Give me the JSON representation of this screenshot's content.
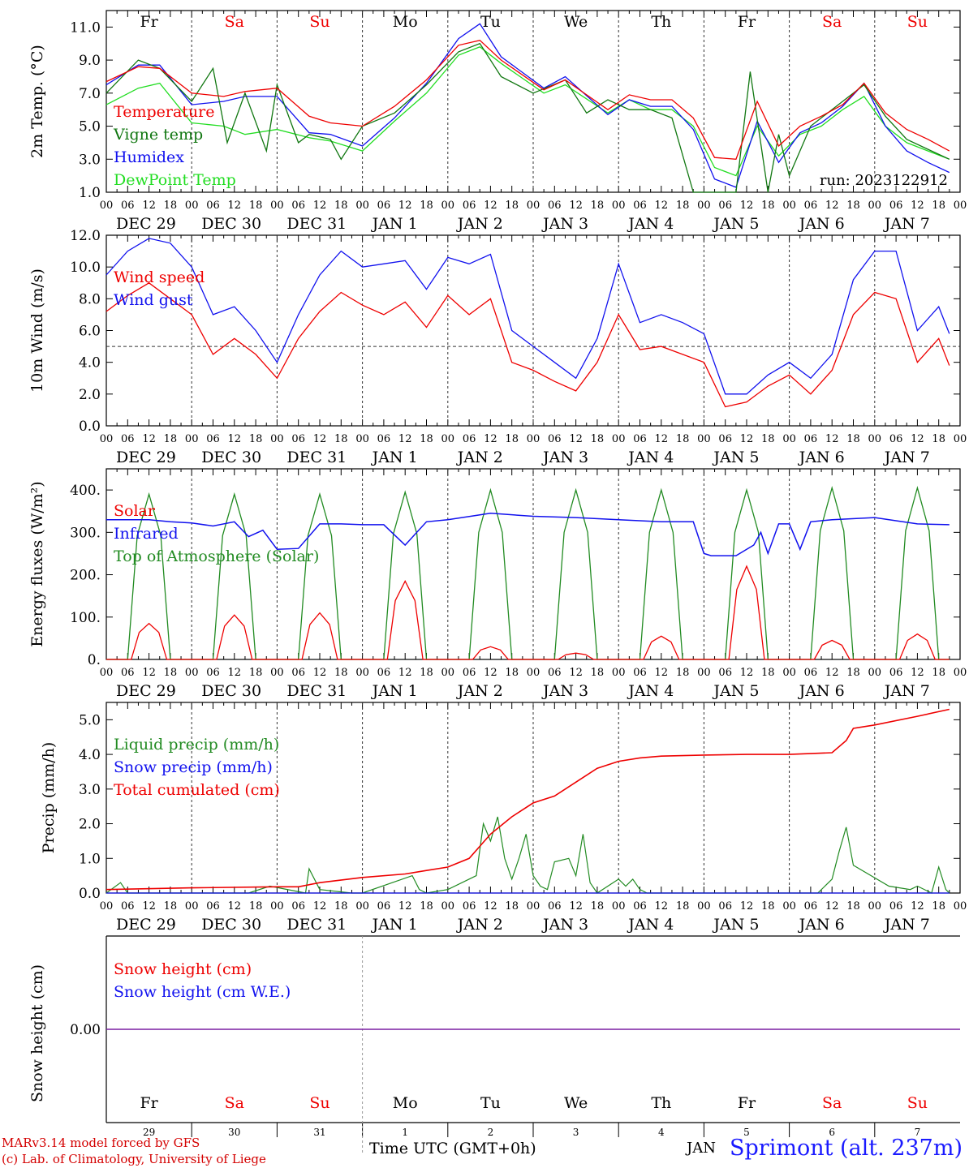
{
  "colors": {
    "red": "#ee0000",
    "darkgreen": "#117711",
    "green": "#228b22",
    "lightgreen": "#22dd22",
    "blue": "#1111ee",
    "purple": "#7a1fa2",
    "weekend": "#ee0000",
    "weekday": "#000000"
  },
  "day_names": [
    "Fr",
    "Sa",
    "Su",
    "Mo",
    "Tu",
    "We",
    "Th",
    "Fr",
    "Sa",
    "Su"
  ],
  "weekend_flags": [
    false,
    true,
    true,
    false,
    false,
    false,
    false,
    false,
    true,
    true
  ],
  "hour_labels": [
    "00",
    "06",
    "12",
    "18"
  ],
  "date_labels": [
    "DEC 29",
    "DEC 30",
    "DEC 31",
    "JAN  1",
    "JAN  2",
    "JAN  3",
    "JAN  4",
    "JAN  5",
    "JAN  6",
    "JAN  7"
  ],
  "bottom_day_numbers": [
    "29",
    "30",
    "31",
    "1",
    "2",
    "3",
    "4",
    "5",
    "6",
    "7"
  ],
  "footer": {
    "model_line": "MARv3.14 model forced by GFS",
    "credit_line": "(c) Lab. of Climatology, University of Liege",
    "time_axis": "Time UTC (GMT+0h)",
    "month": "JAN",
    "station": "Sprimont (alt. 237m)"
  },
  "chart_data": [
    {
      "type": "line",
      "ylabel": "2m Temp. (°C)",
      "ylim": [
        1.0,
        12.0
      ],
      "yticks": [
        "1.0",
        "3.0",
        "5.0",
        "7.0",
        "9.0",
        "11.0"
      ],
      "x_unit": "hours since DEC 29 00 UTC",
      "annotation": "run: 2023122912",
      "series": [
        {
          "name": "Temperature",
          "color": "red",
          "x": [
            0,
            9,
            15,
            24,
            33,
            39,
            48,
            57,
            63,
            72,
            81,
            90,
            99,
            105,
            111,
            123,
            129,
            141,
            147,
            153,
            159,
            165,
            171,
            177,
            183,
            189,
            195,
            201,
            207,
            213,
            219,
            225,
            231,
            237
          ],
          "values": [
            7.7,
            8.6,
            8.5,
            7.0,
            6.8,
            7.1,
            7.3,
            5.6,
            5.2,
            5.0,
            6.2,
            7.8,
            9.9,
            10.2,
            9.0,
            7.2,
            7.8,
            6.0,
            6.9,
            6.6,
            6.6,
            5.5,
            3.1,
            3.0,
            6.5,
            3.8,
            5.0,
            5.6,
            6.3,
            7.6,
            5.8,
            4.8,
            4.2,
            3.5
          ]
        },
        {
          "name": "Vigne temp",
          "color": "darkgreen",
          "x": [
            0,
            9,
            15,
            24,
            30,
            34,
            39,
            45,
            48,
            54,
            57,
            63,
            66,
            72,
            81,
            90,
            99,
            105,
            111,
            120,
            129,
            135,
            141,
            147,
            153,
            159,
            165,
            171,
            177,
            181,
            186,
            189,
            192,
            198,
            207,
            213,
            219,
            225,
            231,
            237
          ],
          "values": [
            7.0,
            9.0,
            8.5,
            6.5,
            8.5,
            4.0,
            7.0,
            3.5,
            7.5,
            4.0,
            4.5,
            4.2,
            3.0,
            5.0,
            5.8,
            7.5,
            9.5,
            10.0,
            8.0,
            7.0,
            7.8,
            5.8,
            6.6,
            6.0,
            6.0,
            5.5,
            1.0,
            1.0,
            1.0,
            8.3,
            1.0,
            4.5,
            2.0,
            5.0,
            6.5,
            7.5,
            5.6,
            4.2,
            3.6,
            3.0
          ]
        },
        {
          "name": "Humidex",
          "color": "blue",
          "x": [
            0,
            9,
            15,
            24,
            33,
            39,
            48,
            57,
            63,
            72,
            81,
            90,
            99,
            105,
            111,
            123,
            129,
            141,
            147,
            153,
            159,
            165,
            171,
            177,
            183,
            189,
            195,
            201,
            207,
            213,
            219,
            225,
            231,
            237
          ],
          "values": [
            7.5,
            8.7,
            8.7,
            6.3,
            6.5,
            6.8,
            6.8,
            4.6,
            4.5,
            3.8,
            5.5,
            7.6,
            10.3,
            11.2,
            9.2,
            7.3,
            8.0,
            5.7,
            6.6,
            6.2,
            6.2,
            4.8,
            1.8,
            1.3,
            5.3,
            2.8,
            4.6,
            5.2,
            6.2,
            7.6,
            5.0,
            3.5,
            2.8,
            2.2
          ]
        },
        {
          "name": "DewPoint Temp",
          "color": "lightgreen",
          "x": [
            0,
            9,
            15,
            24,
            33,
            39,
            48,
            57,
            63,
            72,
            81,
            90,
            99,
            105,
            111,
            123,
            129,
            141,
            147,
            153,
            159,
            165,
            171,
            177,
            183,
            189,
            195,
            201,
            207,
            213,
            219,
            225,
            231,
            237
          ],
          "values": [
            6.3,
            7.3,
            7.6,
            5.2,
            5.0,
            4.5,
            4.8,
            4.3,
            4.1,
            3.5,
            5.3,
            7.0,
            9.3,
            9.8,
            8.8,
            7.0,
            7.5,
            5.8,
            6.6,
            6.0,
            6.0,
            5.0,
            2.5,
            2.0,
            5.0,
            3.2,
            4.5,
            5.0,
            6.0,
            6.8,
            5.0,
            4.0,
            3.5,
            3.0
          ]
        }
      ]
    },
    {
      "type": "line",
      "ylabel": "10m Wind (m/s)",
      "ylim": [
        0.0,
        12.0
      ],
      "yticks": [
        "0.0",
        "2.0",
        "4.0",
        "6.0",
        "8.0",
        "10.0",
        "12.0"
      ],
      "reference_line": 5.0,
      "series": [
        {
          "name": "Wind speed",
          "color": "red",
          "x": [
            0,
            6,
            12,
            18,
            24,
            30,
            36,
            42,
            48,
            54,
            60,
            66,
            72,
            78,
            84,
            90,
            96,
            102,
            108,
            114,
            120,
            126,
            132,
            138,
            144,
            150,
            156,
            162,
            168,
            174,
            180,
            186,
            192,
            198,
            204,
            210,
            216,
            222,
            228,
            234,
            237
          ],
          "values": [
            7.2,
            8.2,
            9.0,
            8.0,
            7.0,
            4.5,
            5.5,
            4.5,
            3.0,
            5.5,
            7.2,
            8.4,
            7.6,
            7.0,
            7.8,
            6.2,
            8.2,
            7.0,
            8.0,
            4.0,
            3.5,
            2.8,
            2.2,
            4.0,
            7.0,
            4.8,
            5.0,
            4.5,
            4.0,
            1.2,
            1.5,
            2.5,
            3.2,
            2.0,
            3.5,
            7.0,
            8.4,
            8.0,
            4.0,
            5.5,
            3.8
          ]
        },
        {
          "name": "Wind gust",
          "color": "blue",
          "x": [
            0,
            6,
            12,
            18,
            24,
            30,
            36,
            42,
            48,
            54,
            60,
            66,
            72,
            78,
            84,
            90,
            96,
            102,
            108,
            114,
            120,
            126,
            132,
            138,
            144,
            150,
            156,
            162,
            168,
            174,
            180,
            186,
            192,
            198,
            204,
            210,
            216,
            222,
            228,
            234,
            237
          ],
          "values": [
            9.5,
            11.0,
            11.8,
            11.5,
            10.0,
            7.0,
            7.5,
            6.0,
            4.0,
            7.0,
            9.5,
            11.0,
            10.0,
            10.2,
            10.4,
            8.6,
            10.6,
            10.2,
            10.8,
            6.0,
            5.0,
            4.0,
            3.0,
            5.5,
            10.2,
            6.5,
            7.0,
            6.5,
            5.8,
            2.0,
            2.0,
            3.2,
            4.0,
            3.0,
            4.5,
            9.2,
            11.0,
            11.0,
            6.0,
            7.5,
            5.8
          ]
        }
      ]
    },
    {
      "type": "line",
      "ylabel": "Energy fluxes (W/m²)",
      "ylim": [
        0,
        450
      ],
      "yticks": [
        "0.",
        "100.",
        "200.",
        "300.",
        "400."
      ],
      "series": [
        {
          "name": "Solar",
          "color": "red",
          "peak_hours": [
            12,
            36,
            60,
            84,
            108,
            132,
            156,
            180,
            204,
            228
          ],
          "values": [
            85,
            105,
            110,
            185,
            30,
            15,
            55,
            220,
            45,
            60
          ]
        },
        {
          "name": "Infrared",
          "color": "blue",
          "x": [
            0,
            12,
            18,
            24,
            30,
            36,
            40,
            44,
            48,
            54,
            60,
            66,
            72,
            78,
            84,
            90,
            96,
            108,
            120,
            132,
            144,
            156,
            165,
            168,
            170,
            177,
            182,
            184,
            186,
            189,
            192,
            195,
            198,
            204,
            216,
            228,
            237
          ],
          "values": [
            330,
            330,
            325,
            322,
            315,
            325,
            290,
            305,
            260,
            262,
            320,
            320,
            318,
            318,
            270,
            325,
            330,
            345,
            338,
            335,
            330,
            325,
            325,
            250,
            245,
            245,
            270,
            300,
            250,
            320,
            320,
            260,
            325,
            330,
            335,
            320,
            318
          ]
        },
        {
          "name": "Top of Atmosphere (Solar)",
          "color": "green",
          "peak_hours": [
            12,
            36,
            60,
            84,
            108,
            132,
            156,
            180,
            204,
            228
          ],
          "values": [
            390,
            390,
            390,
            395,
            400,
            400,
            400,
            400,
            405,
            405
          ]
        }
      ]
    },
    {
      "type": "line",
      "ylabel": "Precip (mm/h)",
      "ylim": [
        0.0,
        5.5
      ],
      "yticks": [
        "0.0",
        "1.0",
        "2.0",
        "3.0",
        "4.0",
        "5.0"
      ],
      "series": [
        {
          "name": "Liquid precip (mm/h)",
          "color": "green",
          "x": [
            0,
            4,
            6,
            10,
            40,
            46,
            56,
            57,
            60,
            69,
            72,
            86,
            88,
            90,
            96,
            104,
            106,
            108,
            110,
            112,
            114,
            116,
            118,
            120,
            122,
            124,
            126,
            130,
            132,
            134,
            136,
            138,
            144,
            146,
            148,
            150,
            152,
            154,
            180,
            200,
            204,
            206,
            208,
            210,
            220,
            226,
            228,
            232,
            234,
            236,
            237
          ],
          "values": [
            0,
            0.3,
            0,
            0,
            0,
            0.2,
            0,
            0.7,
            0.1,
            0,
            0,
            0.5,
            0.1,
            0,
            0.1,
            0.5,
            2.0,
            1.5,
            2.2,
            1.0,
            0.4,
            1.0,
            1.7,
            0.5,
            0.2,
            0.1,
            0.9,
            1.0,
            0.5,
            1.7,
            0.3,
            0,
            0.4,
            0.2,
            0.4,
            0.1,
            0,
            0,
            0,
            0,
            0.4,
            1.2,
            1.9,
            0.8,
            0.2,
            0.1,
            0.2,
            0,
            0.75,
            0.1,
            0
          ]
        },
        {
          "name": "Snow precip (mm/h)",
          "color": "blue",
          "x": [
            0,
            237
          ],
          "values": [
            0,
            0
          ]
        },
        {
          "name": "Total cumulated (cm)",
          "color": "red",
          "x": [
            0,
            24,
            48,
            54,
            60,
            72,
            84,
            90,
            96,
            102,
            108,
            114,
            120,
            126,
            132,
            138,
            144,
            150,
            156,
            168,
            180,
            192,
            204,
            208,
            210,
            216,
            228,
            237
          ],
          "values": [
            0.1,
            0.15,
            0.18,
            0.18,
            0.3,
            0.45,
            0.55,
            0.65,
            0.75,
            1.0,
            1.7,
            2.2,
            2.6,
            2.8,
            3.2,
            3.6,
            3.8,
            3.9,
            3.95,
            3.98,
            4.0,
            4.0,
            4.05,
            4.4,
            4.75,
            4.85,
            5.1,
            5.3
          ]
        }
      ]
    },
    {
      "type": "line",
      "ylabel": "Snow height (cm)",
      "ylim": [
        -1,
        1
      ],
      "yticks": [
        "0.00"
      ],
      "series": [
        {
          "name": "Snow height (cm)",
          "color": "red",
          "x": [
            0,
            237
          ],
          "values": [
            0,
            0
          ]
        },
        {
          "name": "Snow height (cm W.E.)",
          "color": "blue",
          "x": [
            0,
            237
          ],
          "values": [
            0,
            0
          ]
        }
      ]
    }
  ]
}
